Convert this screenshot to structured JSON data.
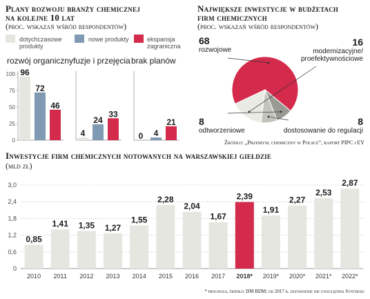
{
  "plans": {
    "title_line1": "Plany rozwoju branży chemicznej",
    "title_line2": "na kolejne 10 lat",
    "subtitle": "(proc. wskazań wśród respondentów)"
  },
  "legend": [
    {
      "label": "dotychczasowe produkty",
      "line1": "dotychczasowe",
      "line2": "produkty",
      "color": "#e6e6e0"
    },
    {
      "label": "nowe produkty",
      "line1": "nowe produkty",
      "line2": "",
      "color": "#7f9ab2"
    },
    {
      "label": "ekspansja zagraniczna",
      "line1": "ekspansja",
      "line2": "zagraniczna",
      "color": "#d42a4c"
    }
  ],
  "invest": {
    "title_line1": "Największe inwestycje w budżetach",
    "title_line2": "firm chemicznych",
    "subtitle": "(proc. wskazań wśród respondentów)",
    "source": "Źródło: „Przemysł chemiczny w Polsce”, raport PIPC i EY"
  },
  "listed": {
    "title": "Inwestycje firm chemicznych notowanych na warszawskiej giełdzie",
    "subtitle": "(mld zł)",
    "footnote": "* prognoza, źródło: DM BDM; od 2017 r. zestawienie nie uwzględnia Synthosu"
  },
  "chart_data": [
    {
      "type": "bar",
      "title": "rozwój organiczny",
      "categories": [
        "dotychczasowe produkty",
        "nowe produkty",
        "ekspansja zagraniczna"
      ],
      "values": [
        96,
        72,
        46
      ],
      "value_labels": [
        "96",
        "72",
        "46"
      ],
      "colors": [
        "#e6e6e0",
        "#7f9ab2",
        "#d42a4c"
      ],
      "yticks": [
        "0",
        "25",
        "50",
        "75",
        "100"
      ],
      "ylim": [
        0,
        100
      ]
    },
    {
      "type": "bar",
      "title": "fuzje i przejęcia",
      "categories": [
        "dotychczasowe produkty",
        "nowe produkty",
        "ekspansja zagraniczna"
      ],
      "values": [
        4,
        24,
        33
      ],
      "value_labels": [
        "4",
        "24",
        "33"
      ],
      "colors": [
        "#e6e6e0",
        "#7f9ab2",
        "#d42a4c"
      ],
      "yticks": [
        "0",
        "25",
        "50",
        "75",
        "100"
      ],
      "ylim": [
        0,
        100
      ]
    },
    {
      "type": "bar",
      "title": "brak planów",
      "categories": [
        "dotychczasowe produkty",
        "nowe produkty",
        "ekspansja zagraniczna"
      ],
      "values": [
        0,
        4,
        21
      ],
      "value_labels": [
        "0",
        "4",
        "21"
      ],
      "colors": [
        "#e6e6e0",
        "#7f9ab2",
        "#d42a4c"
      ],
      "yticks": [
        "0",
        "25",
        "50",
        "75",
        "100"
      ],
      "ylim": [
        0,
        100
      ]
    },
    {
      "type": "pie",
      "labels": [
        "rozwojowe",
        "modernizacyjne/ proefektywnościowe",
        "dostosowanie do regulacji",
        "odtworzeniowe"
      ],
      "values": [
        68,
        16,
        8,
        8
      ],
      "value_labels": [
        "68",
        "16",
        "8",
        "8"
      ],
      "colors": [
        "#d42a4c",
        "#ebebe5",
        "#c4c4be",
        "#9a9a94"
      ]
    },
    {
      "type": "bar",
      "categories": [
        "2010",
        "2011",
        "2012",
        "2013",
        "2014",
        "2015",
        "2016",
        "2017",
        "2018*",
        "2019*",
        "2020*",
        "2021*",
        "2022*"
      ],
      "values": [
        0.85,
        1.41,
        1.35,
        1.27,
        1.55,
        2.28,
        2.04,
        1.67,
        2.39,
        1.91,
        2.27,
        2.53,
        2.87
      ],
      "value_labels": [
        "0,85",
        "1,41",
        "1,35",
        "1,27",
        "1,55",
        "2,28",
        "2,04",
        "1,67",
        "2,39",
        "1,91",
        "2,27",
        "2,53",
        "2,87"
      ],
      "highlight_index": 8,
      "bar_color": "#e6e6e0",
      "highlight_color": "#d42a4c",
      "yticks": [
        "0",
        "0,6",
        "1,2",
        "1,8",
        "2,4",
        "3,0"
      ],
      "ylim": [
        0,
        3.0
      ]
    }
  ]
}
